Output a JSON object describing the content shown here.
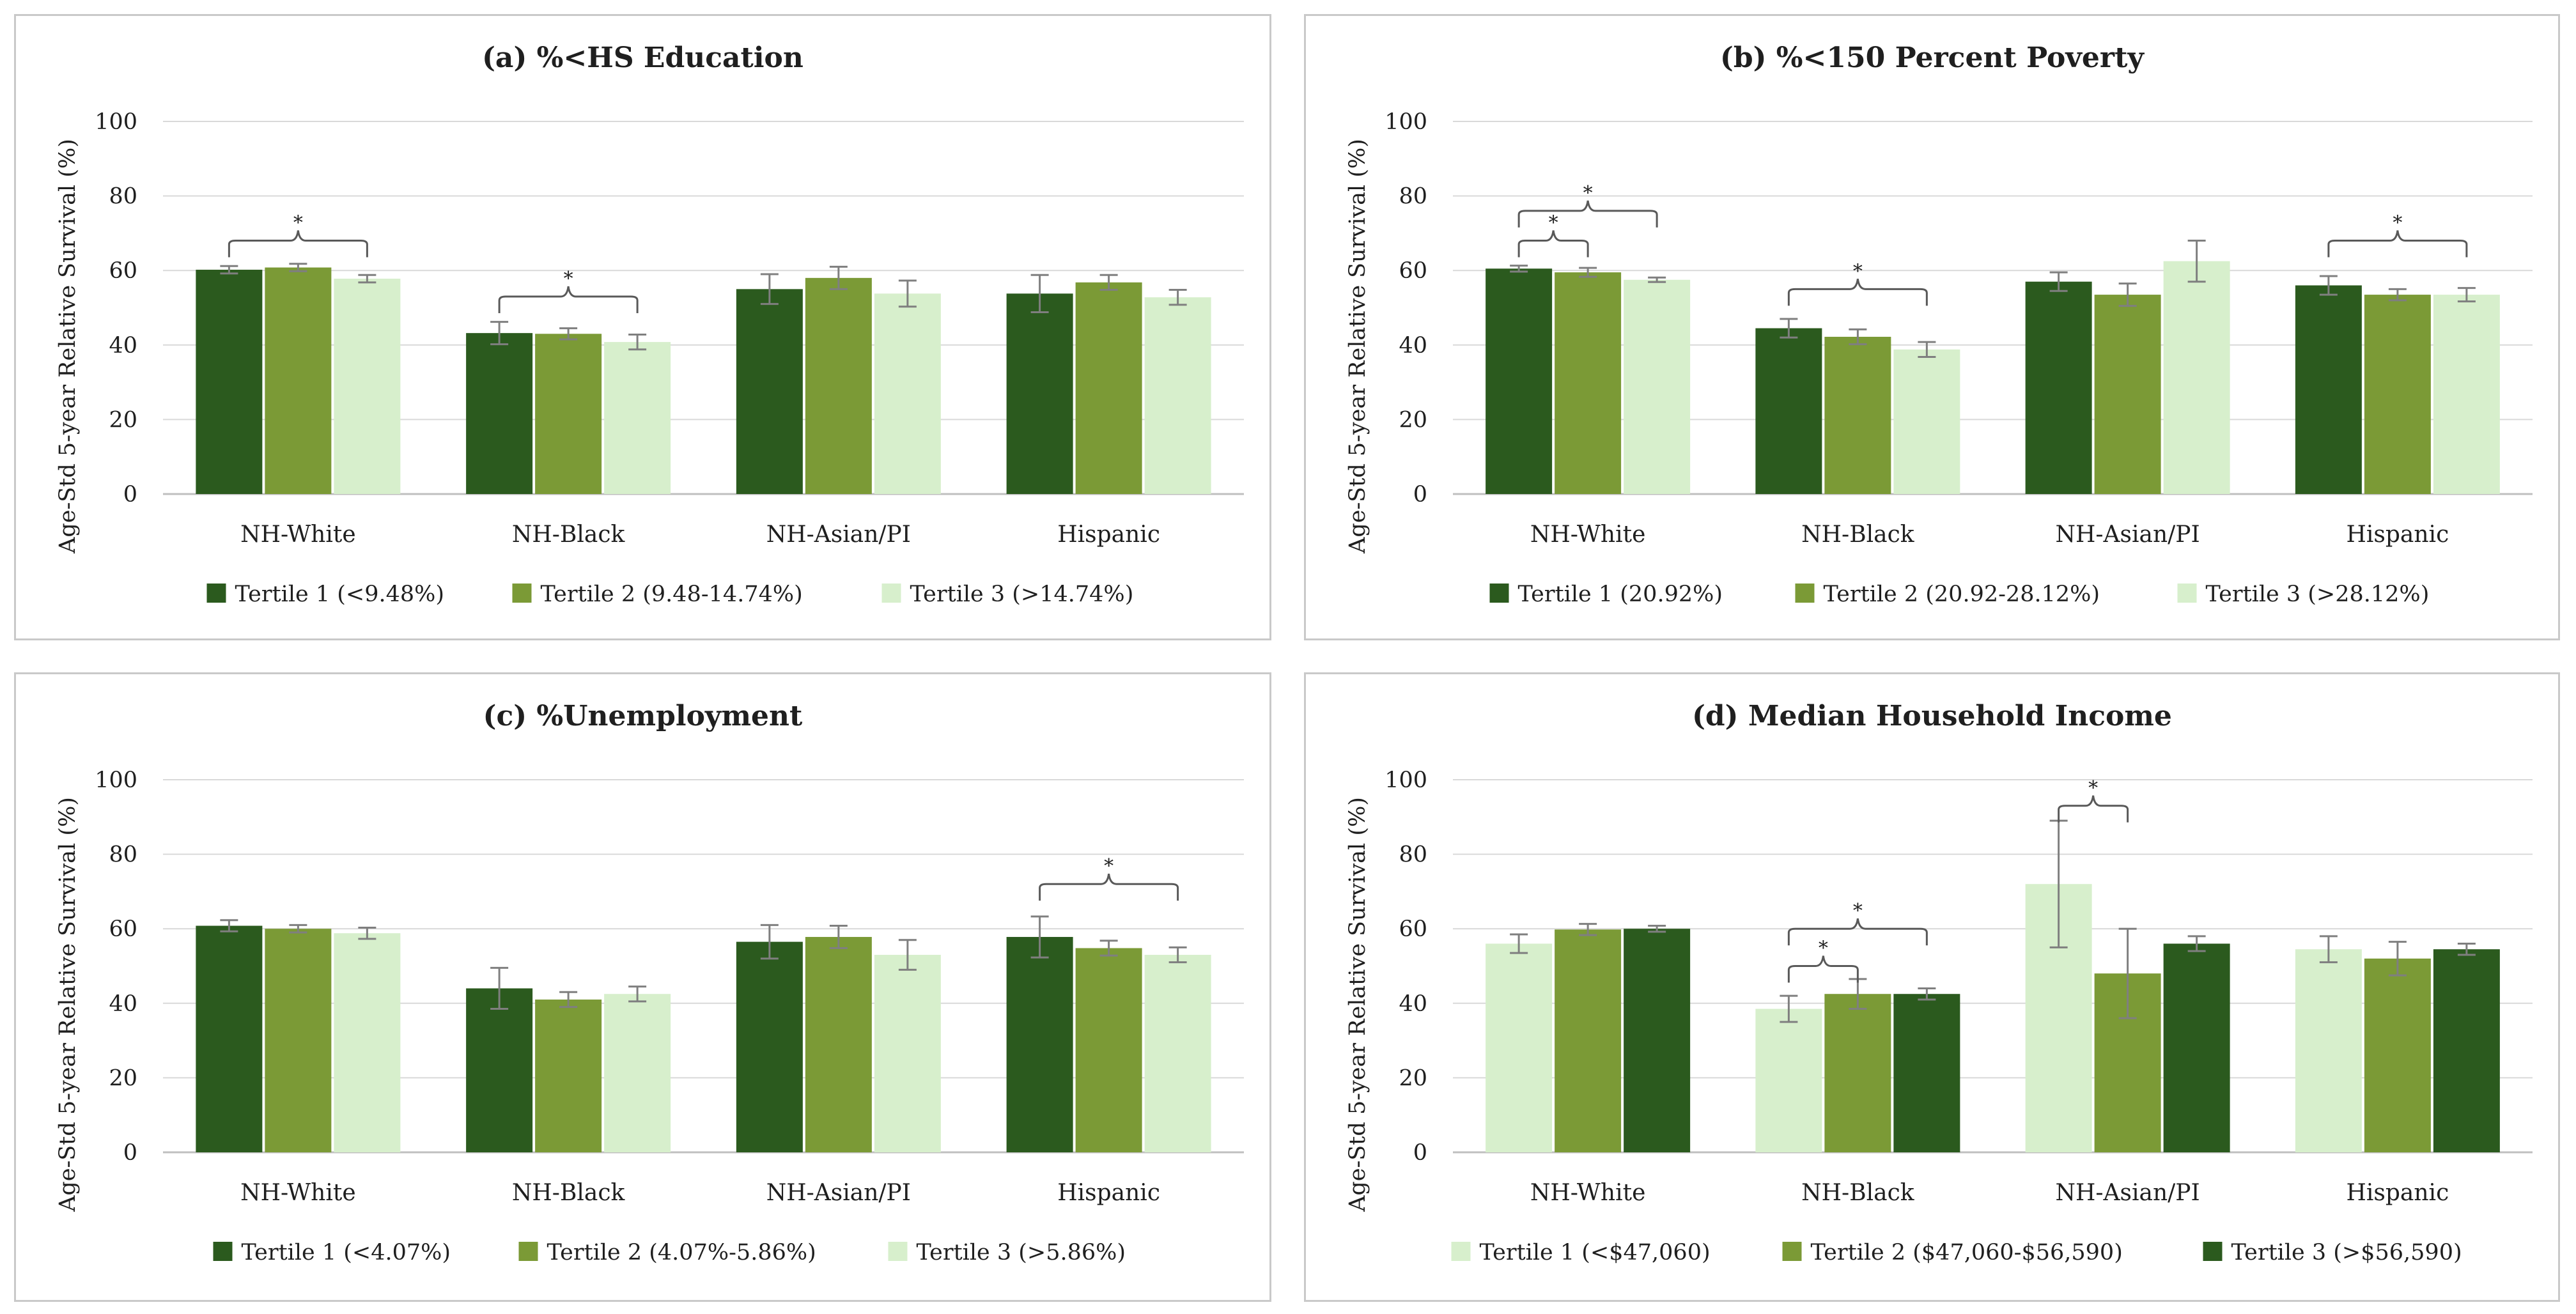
{
  "colors": {
    "dark": "#2b5a1e",
    "mid": "#7b9a36",
    "light": "#d7efcc",
    "grid": "#d9d9d9",
    "axis": "#bfbfbf",
    "text": "#1f1f1f",
    "errbar": "#7f7f7f",
    "bracket": "#595959"
  },
  "chart_data": [
    {
      "type": "bar",
      "title": "(a) %<HS Education",
      "ylabel": "Age-Std 5-year Relative Survival (%)",
      "ylim": [
        0,
        100
      ],
      "yticks": [
        "0",
        "20",
        "40",
        "60",
        "80",
        "100"
      ],
      "grid": true,
      "legend_position": "bottom",
      "categories": [
        "NH-White",
        "NH-Black",
        "NH-Asian/PI",
        "Hispanic"
      ],
      "series": [
        {
          "name": "Tertile 1 (<9.48%)",
          "color": "dark",
          "values": [
            60.2,
            43.2,
            55.0,
            53.8
          ],
          "errors": [
            1.0,
            3.0,
            4.0,
            5.0
          ]
        },
        {
          "name": "Tertile 2 (9.48-14.74%)",
          "color": "mid",
          "values": [
            60.8,
            43.0,
            58.0,
            56.8
          ],
          "errors": [
            1.0,
            1.5,
            3.0,
            2.0
          ]
        },
        {
          "name": "Tertile 3 (>14.74%)",
          "color": "light",
          "values": [
            57.8,
            40.8,
            53.8,
            52.8
          ],
          "errors": [
            1.0,
            2.0,
            3.5,
            2.0
          ]
        }
      ],
      "annotations": [
        {
          "type": "brace",
          "category": 0,
          "from": 0,
          "to": 2,
          "y": 68,
          "label": "*"
        },
        {
          "type": "brace",
          "category": 1,
          "from": 0,
          "to": 2,
          "y": 53,
          "label": "*"
        }
      ]
    },
    {
      "type": "bar",
      "title": "(b) %<150 Percent Poverty",
      "ylabel": "Age-Std 5-year Relative Survival (%)",
      "ylim": [
        0,
        100
      ],
      "yticks": [
        "0",
        "20",
        "40",
        "60",
        "80",
        "100"
      ],
      "grid": true,
      "legend_position": "bottom",
      "categories": [
        "NH-White",
        "NH-Black",
        "NH-Asian/PI",
        "Hispanic"
      ],
      "series": [
        {
          "name": "Tertile 1 (20.92%)",
          "color": "dark",
          "values": [
            60.5,
            44.5,
            57.0,
            56.0
          ],
          "errors": [
            0.8,
            2.5,
            2.5,
            2.5
          ]
        },
        {
          "name": "Tertile 2 (20.92-28.12%)",
          "color": "mid",
          "values": [
            59.5,
            42.2,
            53.5,
            53.5
          ],
          "errors": [
            1.2,
            2.0,
            3.0,
            1.5
          ]
        },
        {
          "name": "Tertile 3 (>28.12%)",
          "color": "light",
          "values": [
            57.5,
            38.8,
            62.5,
            53.5
          ],
          "errors": [
            0.6,
            2.0,
            5.5,
            1.8
          ]
        }
      ],
      "annotations": [
        {
          "type": "brace",
          "category": 0,
          "from": 0,
          "to": 1,
          "y": 68,
          "label": "*"
        },
        {
          "type": "brace",
          "category": 0,
          "from": 0,
          "to": 2,
          "y": 76,
          "label": "*"
        },
        {
          "type": "brace",
          "category": 1,
          "from": 0,
          "to": 2,
          "y": 55,
          "label": "*"
        },
        {
          "type": "brace",
          "category": 3,
          "from": 0,
          "to": 2,
          "y": 68,
          "label": "*"
        }
      ]
    },
    {
      "type": "bar",
      "title": "(c) %Unemployment",
      "ylabel": "Age-Std 5-year Relative Survival (%)",
      "ylim": [
        0,
        100
      ],
      "yticks": [
        "0",
        "20",
        "40",
        "60",
        "80",
        "100"
      ],
      "grid": true,
      "legend_position": "bottom",
      "categories": [
        "NH-White",
        "NH-Black",
        "NH-Asian/PI",
        "Hispanic"
      ],
      "series": [
        {
          "name": "Tertile 1 (<4.07%)",
          "color": "dark",
          "values": [
            60.8,
            44.0,
            56.5,
            57.8
          ],
          "errors": [
            1.5,
            5.5,
            4.5,
            5.5
          ]
        },
        {
          "name": "Tertile 2 (4.07%-5.86%)",
          "color": "mid",
          "values": [
            60.0,
            41.0,
            57.8,
            54.8
          ],
          "errors": [
            1.0,
            2.0,
            3.0,
            2.0
          ]
        },
        {
          "name": "Tertile 3 (>5.86%)",
          "color": "light",
          "values": [
            58.8,
            42.5,
            53.0,
            53.0
          ],
          "errors": [
            1.5,
            2.0,
            4.0,
            2.0
          ]
        }
      ],
      "annotations": [
        {
          "type": "brace",
          "category": 3,
          "from": 0,
          "to": 2,
          "y": 72,
          "label": "*"
        }
      ]
    },
    {
      "type": "bar",
      "title": "(d) Median Household Income",
      "ylabel": "Age-Std 5-year Relative Survival (%)",
      "ylim": [
        0,
        100
      ],
      "yticks": [
        "0",
        "20",
        "40",
        "60",
        "80",
        "100"
      ],
      "grid": true,
      "legend_position": "bottom",
      "categories": [
        "NH-White",
        "NH-Black",
        "NH-Asian/PI",
        "Hispanic"
      ],
      "series": [
        {
          "name": "Tertile 1 (<$47,060)",
          "color": "light",
          "values": [
            56.0,
            38.5,
            72.0,
            54.5
          ],
          "errors": [
            2.5,
            3.5,
            17.0,
            3.5
          ]
        },
        {
          "name": "Tertile 2 ($47,060-$56,590)",
          "color": "mid",
          "values": [
            59.8,
            42.5,
            48.0,
            52.0
          ],
          "errors": [
            1.5,
            4.0,
            12.0,
            4.5
          ]
        },
        {
          "name": "Tertile 3 (>$56,590)",
          "color": "dark",
          "values": [
            60.0,
            42.5,
            56.0,
            54.5
          ],
          "errors": [
            0.8,
            1.5,
            2.0,
            1.5
          ]
        }
      ],
      "annotations": [
        {
          "type": "brace",
          "category": 1,
          "from": 0,
          "to": 1,
          "y": 50,
          "label": "*"
        },
        {
          "type": "brace",
          "category": 1,
          "from": 0,
          "to": 2,
          "y": 60,
          "label": "*"
        },
        {
          "type": "brace",
          "category": 2,
          "from": 0,
          "to": 1,
          "y": 93,
          "label": "*"
        }
      ]
    }
  ]
}
